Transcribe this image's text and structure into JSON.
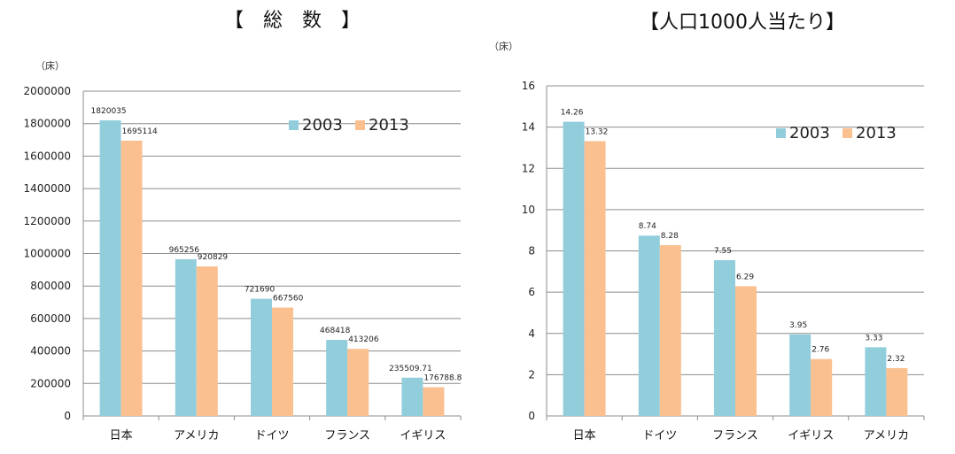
{
  "colors": {
    "s2003": "#92cddc",
    "s2013": "#fac090",
    "grid": "#8c8c8c",
    "axis": "#8c8c8c"
  },
  "chart_data": [
    {
      "type": "bar",
      "title": "【　総　数　】",
      "unit": "（床）",
      "categories": [
        "日本",
        "アメリカ",
        "ドイツ",
        "フランス",
        "イギリス"
      ],
      "series": [
        {
          "name": "2003",
          "values": [
            1820035,
            965256,
            721690,
            468418,
            235509.71
          ],
          "labels": [
            "1820035",
            "965256",
            "721690",
            "468418",
            "235509.71"
          ]
        },
        {
          "name": "2013",
          "values": [
            1695114,
            920829,
            667560,
            413206,
            176788.8
          ],
          "labels": [
            "1695114",
            "920829",
            "667560",
            "413206",
            "176788.8"
          ]
        }
      ],
      "ylim": [
        0,
        2000000
      ],
      "yticks": [
        0,
        200000,
        400000,
        600000,
        800000,
        1000000,
        1200000,
        1400000,
        1600000,
        1800000,
        2000000
      ],
      "grid": true,
      "legend_position": "top-right"
    },
    {
      "type": "bar",
      "title": "【人口1000人当たり】",
      "unit": "（床）",
      "categories": [
        "日本",
        "ドイツ",
        "フランス",
        "イギリス",
        "アメリカ"
      ],
      "series": [
        {
          "name": "2003",
          "values": [
            14.26,
            8.74,
            7.55,
            3.95,
            3.33
          ],
          "labels": [
            "14.26",
            "8.74",
            "7.55",
            "3.95",
            "3.33"
          ]
        },
        {
          "name": "2013",
          "values": [
            13.32,
            8.28,
            6.29,
            2.76,
            2.32
          ],
          "labels": [
            "13.32",
            "8.28",
            "6.29",
            "2.76",
            "2.32"
          ]
        }
      ],
      "ylim": [
        0,
        16
      ],
      "yticks": [
        0,
        2,
        4,
        6,
        8,
        10,
        12,
        14,
        16
      ],
      "grid": true,
      "legend_position": "top-right"
    }
  ]
}
